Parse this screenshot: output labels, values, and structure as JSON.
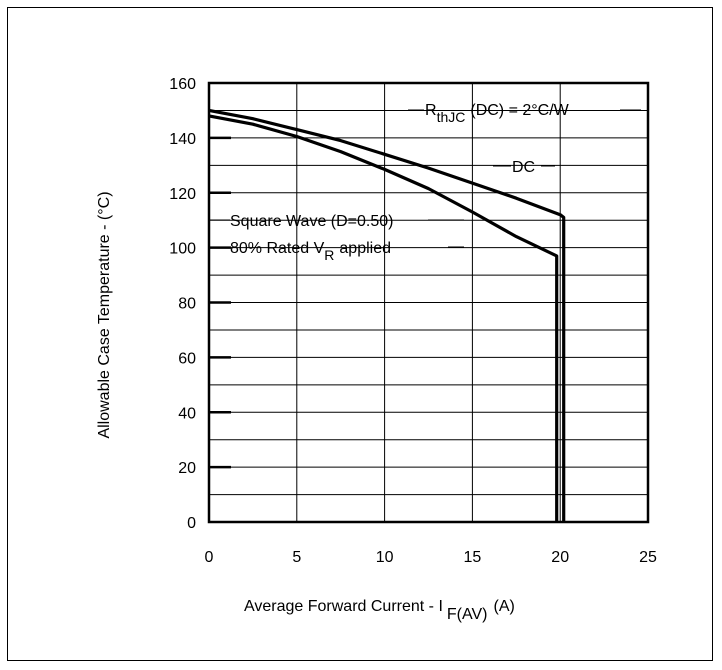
{
  "chart_data": {
    "type": "line",
    "title": "",
    "xlabel": {
      "main": "Average Forward Current - I",
      "sub": "F(AV)",
      "unit": "(A)"
    },
    "ylabel": "Allowable Case Temperature - (°C)",
    "xlim": [
      0,
      25
    ],
    "ylim": [
      0,
      160
    ],
    "x_ticks": [
      0,
      5,
      10,
      15,
      20,
      25
    ],
    "y_ticks": [
      0,
      20,
      40,
      60,
      80,
      100,
      120,
      140,
      160
    ],
    "x_tick_labels": [
      "0",
      "5",
      "10",
      "15",
      "20",
      "25"
    ],
    "y_tick_labels": [
      "0",
      "20",
      "40",
      "60",
      "80",
      "100",
      "120",
      "140",
      "160"
    ],
    "grid": true,
    "series": [
      {
        "name": "DC",
        "x": [
          0,
          2.5,
          5,
          7.5,
          10,
          12.5,
          15,
          17.5,
          20,
          20.2,
          20.2
        ],
        "y": [
          150,
          147,
          143,
          139,
          134,
          129,
          123.5,
          118,
          112,
          111,
          0
        ]
      },
      {
        "name": "Square Wave (D=0.50)",
        "x": [
          0,
          2.5,
          5,
          7.5,
          10,
          12.5,
          15,
          17.5,
          19.8,
          19.8
        ],
        "y": [
          148,
          145,
          140.5,
          135,
          128.5,
          121.5,
          113,
          104,
          97,
          0
        ]
      }
    ],
    "annotations": {
      "rth": {
        "main": "R",
        "sub": "thJC",
        "rest": "(DC) = 2°C/W"
      },
      "dc": "DC",
      "square_wave": "Square Wave (D=0.50)",
      "rated": {
        "main": "80% Rated V",
        "sub": "R",
        "rest": "applied"
      }
    }
  }
}
